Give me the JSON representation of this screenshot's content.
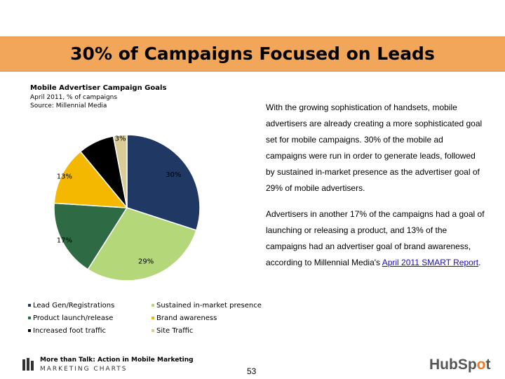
{
  "slide": {
    "title": "30% of Campaigns Focused on Leads",
    "page_number": "53"
  },
  "chart_info": {
    "title": "Mobile Advertiser Campaign Goals",
    "subtitle": "April 2011, % of campaigns",
    "source": "Source: Millennial Media"
  },
  "side_text": {
    "p1": "With the growing sophistication of handsets, mobile advertisers are already creating a more sophisticated goal set for mobile campaigns. 30% of the mobile ad campaigns were run in order to generate leads, followed by sustained in-market presence as the advertiser goal of 29% of mobile advertisers.",
    "p2_start": "Advertisers in another 17% of the campaigns had a goal of launching or releasing a product, and 13% of the campaigns had an advertiser goal of brand awareness, according to Millennial Media's ",
    "p2_link": "April 2011 SMART Report",
    "p2_end": "."
  },
  "chart_data": {
    "type": "pie",
    "title": "Mobile Advertiser Campaign Goals",
    "unit": "% of campaigns",
    "slices": [
      {
        "label": "Lead Gen/Registrations",
        "value": 30,
        "display": "30%",
        "color": "#1F3864"
      },
      {
        "label": "Sustained in-market presence",
        "value": 29,
        "display": "29%",
        "color": "#B4D77A"
      },
      {
        "label": "Product launch/release",
        "value": 17,
        "display": "17%",
        "color": "#2E6B45"
      },
      {
        "label": "Brand awareness",
        "value": 13,
        "display": "13%",
        "color": "#F5B800"
      },
      {
        "label": "Increased foot traffic",
        "value": 8,
        "display": "8%",
        "color": "#000000"
      },
      {
        "label": "Site Traffic",
        "value": 3,
        "display": "3%",
        "color": "#D9CC95"
      }
    ]
  },
  "legend": {
    "items": [
      {
        "label": "Lead Gen/Registrations",
        "color": "#1F3864"
      },
      {
        "label": "Sustained in-market presence",
        "color": "#B4D77A"
      },
      {
        "label": "Product launch/release",
        "color": "#2E6B45"
      },
      {
        "label": "Brand awareness",
        "color": "#F5B800"
      },
      {
        "label": "Increased foot traffic",
        "color": "#000000"
      },
      {
        "label": "Site Traffic",
        "color": "#D9CC95"
      }
    ]
  },
  "footer": {
    "tagline": "More than Talk: Action in Mobile Marketing",
    "brand": "MARKETING CHARTS",
    "hubspot_pre": "HubSp",
    "hubspot_accent": "o",
    "hubspot_post": "t"
  }
}
